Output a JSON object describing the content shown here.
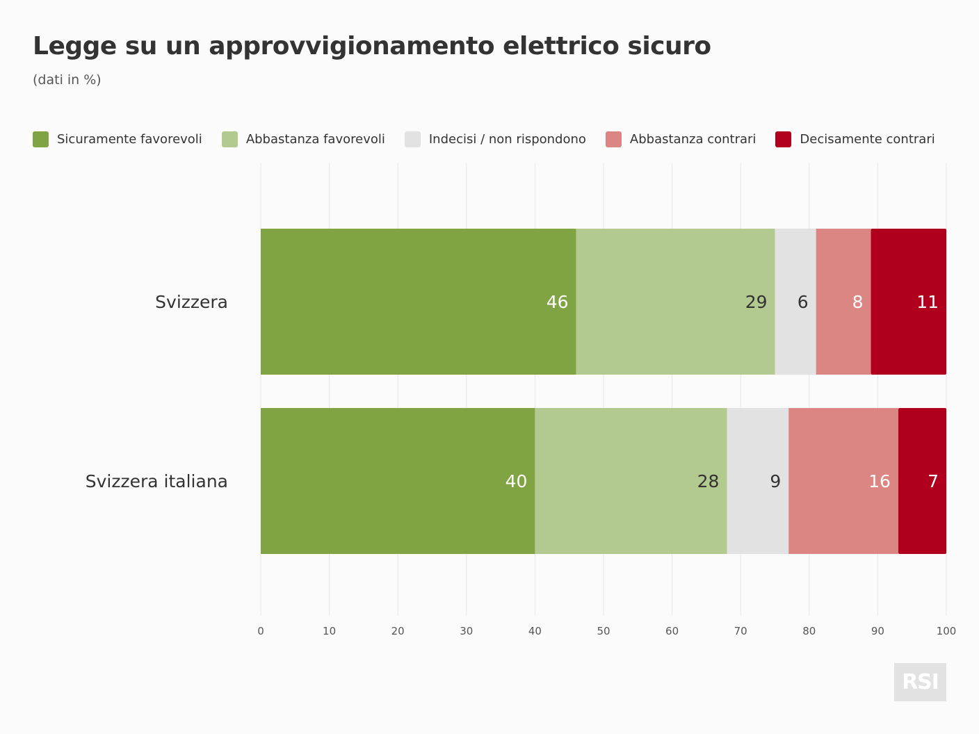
{
  "header": {
    "title": "Legge su un approvvigionamento elettrico sicuro",
    "subtitle": "(dati in %)"
  },
  "logo": {
    "text": "RSI"
  },
  "chart_data": {
    "type": "bar",
    "orientation": "horizontal",
    "stacked": true,
    "title": "Legge su un approvvigionamento elettrico sicuro",
    "subtitle": "(dati in %)",
    "categories": [
      "Svizzera",
      "Svizzera italiana"
    ],
    "series": [
      {
        "name": "Sicuramente favorevoli",
        "color": "#80a444",
        "label_color": "#ffffff",
        "values": [
          46,
          40
        ]
      },
      {
        "name": "Abbastanza favorevoli",
        "color": "#b2c98f",
        "label_color": "#333333",
        "values": [
          29,
          28
        ]
      },
      {
        "name": "Indecisi / non rispondono",
        "color": "#e2e2e2",
        "label_color": "#333333",
        "values": [
          6,
          9
        ]
      },
      {
        "name": "Abbastanza contrari",
        "color": "#db8682",
        "label_color": "#ffffff",
        "values": [
          8,
          16
        ]
      },
      {
        "name": "Decisamente contrari",
        "color": "#b0001d",
        "label_color": "#ffffff",
        "values": [
          11,
          7
        ]
      }
    ],
    "xlim": [
      0,
      100
    ],
    "xticks": [
      0,
      10,
      20,
      30,
      40,
      50,
      60,
      70,
      80,
      90,
      100
    ],
    "grid": true,
    "legend_position": "top-left"
  }
}
